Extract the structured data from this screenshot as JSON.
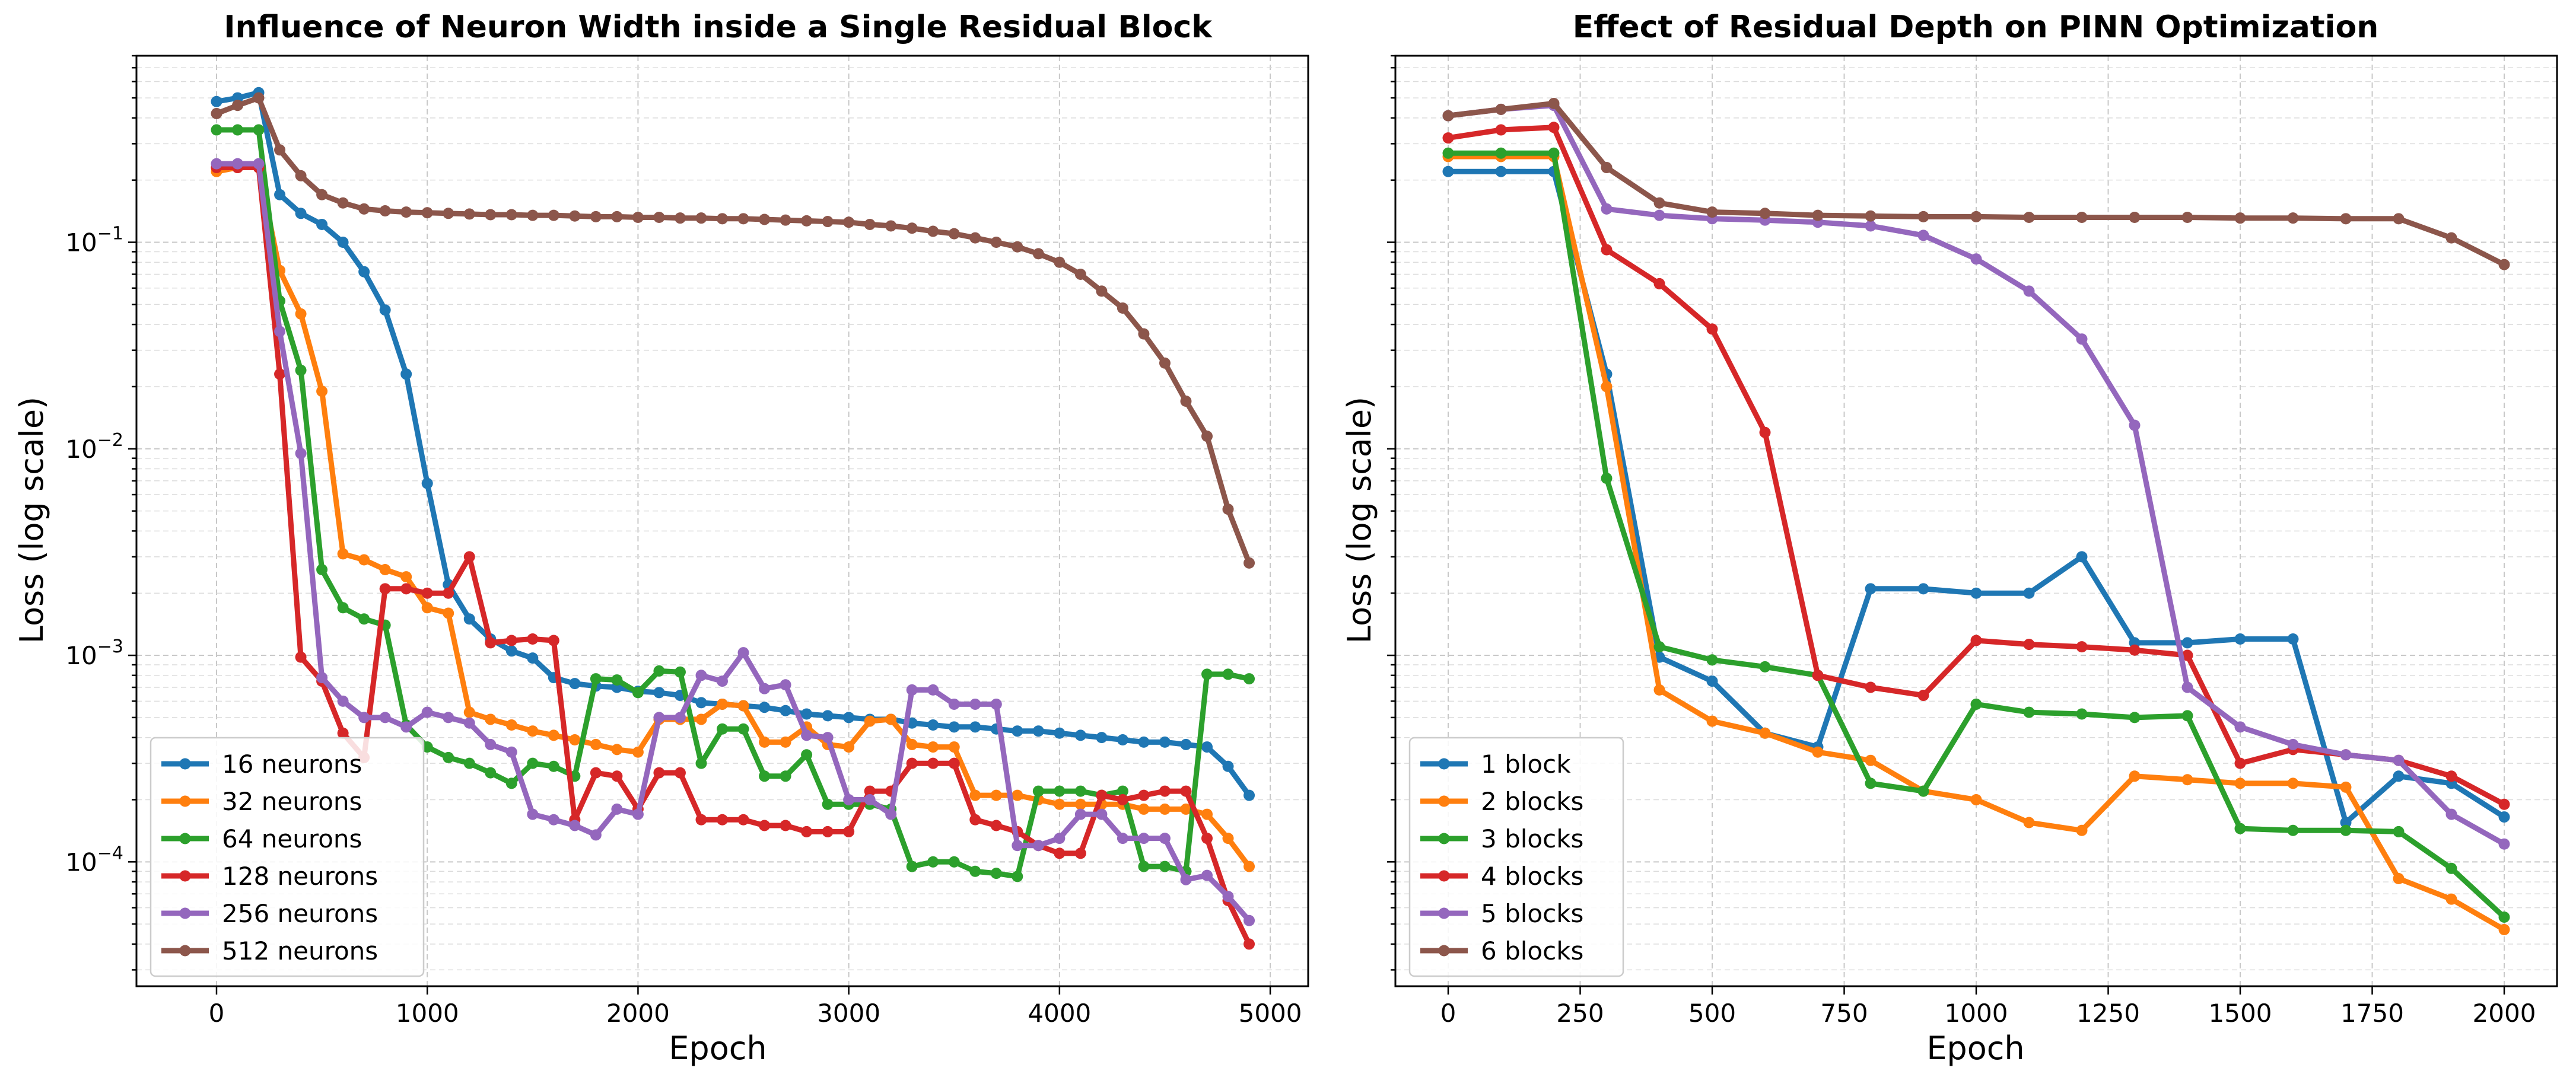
{
  "chart_data": [
    {
      "type": "line",
      "title": "Influence of Neuron Width inside a Single Residual Block",
      "xlabel": "Epoch",
      "ylabel": "Loss (log scale)",
      "yscale": "log",
      "xlim": [
        -380,
        5180
      ],
      "ylim": [
        2.5e-05,
        0.8
      ],
      "xticks": [
        0,
        1000,
        2000,
        3000,
        4000,
        5000
      ],
      "xtick_labels": [
        "0",
        "1000",
        "2000",
        "3000",
        "4000",
        "5000"
      ],
      "yticks": [
        0.0001,
        0.001,
        0.01,
        0.1
      ],
      "ytick_labels": [
        "10",
        "10",
        "10",
        "10"
      ],
      "ytick_exponents": [
        "−4",
        "−3",
        "−2",
        "−1"
      ],
      "grid": true,
      "legend_position": "lower-left",
      "x": [
        0,
        100,
        200,
        300,
        400,
        500,
        600,
        700,
        800,
        900,
        1000,
        1100,
        1200,
        1300,
        1400,
        1500,
        1600,
        1700,
        1800,
        1900,
        2000,
        2100,
        2200,
        2300,
        2400,
        2500,
        2600,
        2700,
        2800,
        2900,
        3000,
        3100,
        3200,
        3300,
        3400,
        3500,
        3600,
        3700,
        3800,
        3900,
        4000,
        4100,
        4200,
        4300,
        4400,
        4500,
        4600,
        4700,
        4800,
        4900
      ],
      "series": [
        {
          "name": "16 neurons",
          "color": "#1f77b4",
          "values": [
            0.48,
            0.5,
            0.53,
            0.17,
            0.138,
            0.122,
            0.1,
            0.072,
            0.047,
            0.023,
            0.0068,
            0.0022,
            0.0015,
            0.0012,
            0.00105,
            0.00097,
            0.00078,
            0.00073,
            0.00071,
            0.0007,
            0.00067,
            0.00066,
            0.00064,
            0.00059,
            0.00058,
            0.00057,
            0.00056,
            0.00054,
            0.00052,
            0.00051,
            0.0005,
            0.00049,
            0.00049,
            0.00047,
            0.00046,
            0.00045,
            0.00045,
            0.00044,
            0.00043,
            0.00043,
            0.00042,
            0.00041,
            0.0004,
            0.00039,
            0.00038,
            0.00038,
            0.00037,
            0.00036,
            0.00029,
            0.00021
          ]
        },
        {
          "name": "32 neurons",
          "color": "#ff7f0e",
          "values": [
            0.22,
            0.23,
            0.23,
            0.073,
            0.045,
            0.019,
            0.0031,
            0.0029,
            0.0026,
            0.0024,
            0.0017,
            0.0016,
            0.00053,
            0.00049,
            0.00046,
            0.00043,
            0.00041,
            0.00039,
            0.00037,
            0.00035,
            0.00034,
            0.00049,
            0.00049,
            0.00049,
            0.00058,
            0.00057,
            0.00038,
            0.00038,
            0.00045,
            0.00037,
            0.00036,
            0.00048,
            0.00049,
            0.00037,
            0.00036,
            0.00036,
            0.00021,
            0.00021,
            0.00021,
            0.0002,
            0.00019,
            0.00019,
            0.00019,
            0.00019,
            0.00018,
            0.00018,
            0.00018,
            0.00017,
            0.00013,
            9.5e-05
          ]
        },
        {
          "name": "64 neurons",
          "color": "#2ca02c",
          "values": [
            0.35,
            0.35,
            0.35,
            0.052,
            0.024,
            0.0026,
            0.0017,
            0.0015,
            0.0014,
            0.00046,
            0.00036,
            0.00032,
            0.0003,
            0.00027,
            0.00024,
            0.0003,
            0.00029,
            0.00026,
            0.00077,
            0.00076,
            0.00066,
            0.00084,
            0.00083,
            0.0003,
            0.00044,
            0.00044,
            0.00026,
            0.00026,
            0.00033,
            0.00019,
            0.00019,
            0.00019,
            0.00018,
            9.5e-05,
            0.0001,
            0.0001,
            9e-05,
            8.8e-05,
            8.5e-05,
            0.00022,
            0.00022,
            0.00022,
            0.00021,
            0.00022,
            9.5e-05,
            9.5e-05,
            9e-05,
            0.00081,
            0.00081,
            0.00077
          ]
        },
        {
          "name": "128 neurons",
          "color": "#d62728",
          "values": [
            0.23,
            0.23,
            0.23,
            0.023,
            0.00098,
            0.00075,
            0.00042,
            0.00032,
            0.0021,
            0.0021,
            0.002,
            0.002,
            0.003,
            0.00115,
            0.00118,
            0.0012,
            0.00118,
            0.00016,
            0.00027,
            0.00026,
            0.00018,
            0.00027,
            0.00027,
            0.00016,
            0.00016,
            0.00016,
            0.00015,
            0.00015,
            0.00014,
            0.00014,
            0.00014,
            0.00022,
            0.00022,
            0.0003,
            0.0003,
            0.0003,
            0.00016,
            0.00015,
            0.00014,
            0.00012,
            0.00011,
            0.00011,
            0.00021,
            0.0002,
            0.00021,
            0.00022,
            0.00022,
            0.00013,
            6.5e-05,
            4e-05
          ]
        },
        {
          "name": "256 neurons",
          "color": "#9467bd",
          "values": [
            0.24,
            0.24,
            0.24,
            0.037,
            0.0095,
            0.00078,
            0.0006,
            0.0005,
            0.0005,
            0.00045,
            0.00053,
            0.0005,
            0.00047,
            0.00037,
            0.00034,
            0.00017,
            0.00016,
            0.00015,
            0.000135,
            0.00018,
            0.00017,
            0.0005,
            0.0005,
            0.0008,
            0.00075,
            0.00103,
            0.00069,
            0.00072,
            0.00041,
            0.0004,
            0.0002,
            0.0002,
            0.00017,
            0.00068,
            0.00068,
            0.00058,
            0.00058,
            0.00058,
            0.00012,
            0.00012,
            0.00013,
            0.00017,
            0.00017,
            0.00013,
            0.00013,
            0.00013,
            8.2e-05,
            8.6e-05,
            6.8e-05,
            5.2e-05
          ]
        },
        {
          "name": "512 neurons",
          "color": "#8c564b",
          "values": [
            0.42,
            0.46,
            0.5,
            0.28,
            0.21,
            0.17,
            0.155,
            0.145,
            0.142,
            0.14,
            0.139,
            0.138,
            0.137,
            0.136,
            0.136,
            0.135,
            0.135,
            0.134,
            0.133,
            0.133,
            0.132,
            0.132,
            0.131,
            0.131,
            0.13,
            0.13,
            0.129,
            0.128,
            0.127,
            0.126,
            0.125,
            0.122,
            0.12,
            0.117,
            0.113,
            0.11,
            0.105,
            0.1,
            0.095,
            0.088,
            0.08,
            0.07,
            0.058,
            0.048,
            0.036,
            0.026,
            0.017,
            0.0115,
            0.0051,
            0.0028
          ]
        }
      ]
    },
    {
      "type": "line",
      "title": "Effect of Residual Depth on PINN Optimization",
      "xlabel": "Epoch",
      "ylabel": "Loss (log scale)",
      "yscale": "log",
      "xlim": [
        -100,
        2100
      ],
      "ylim": [
        2.5e-05,
        0.8
      ],
      "xticks": [
        0,
        250,
        500,
        750,
        1000,
        1250,
        1500,
        1750,
        2000
      ],
      "xtick_labels": [
        "0",
        "250",
        "500",
        "750",
        "1000",
        "1250",
        "1500",
        "1750",
        "2000"
      ],
      "yticks": [
        0.0001,
        0.001,
        0.01,
        0.1
      ],
      "grid": true,
      "legend_position": "lower-left",
      "x": [
        0,
        100,
        200,
        300,
        400,
        500,
        600,
        700,
        800,
        900,
        1000,
        1100,
        1200,
        1300,
        1400,
        1500,
        1600,
        1700,
        1800,
        1900,
        2000
      ],
      "series": [
        {
          "name": "1 block",
          "color": "#1f77b4",
          "values": [
            0.22,
            0.22,
            0.22,
            0.023,
            0.00098,
            0.00075,
            0.00042,
            0.00036,
            0.0021,
            0.0021,
            0.002,
            0.002,
            0.003,
            0.00115,
            0.00115,
            0.0012,
            0.0012,
            0.000155,
            0.00026,
            0.00024,
            0.000165
          ]
        },
        {
          "name": "2 blocks",
          "color": "#ff7f0e",
          "values": [
            0.26,
            0.26,
            0.26,
            0.02,
            0.00068,
            0.00048,
            0.00042,
            0.00034,
            0.00031,
            0.00022,
            0.0002,
            0.000155,
            0.000142,
            0.00026,
            0.00025,
            0.00024,
            0.00024,
            0.00023,
            8.3e-05,
            6.6e-05,
            4.7e-05
          ]
        },
        {
          "name": "3 blocks",
          "color": "#2ca02c",
          "values": [
            0.27,
            0.27,
            0.27,
            0.0072,
            0.0011,
            0.00095,
            0.00088,
            0.0008,
            0.00024,
            0.00022,
            0.00058,
            0.00053,
            0.00052,
            0.0005,
            0.00051,
            0.000145,
            0.000142,
            0.000142,
            0.00014,
            9.3e-05,
            5.4e-05
          ]
        },
        {
          "name": "4 blocks",
          "color": "#d62728",
          "values": [
            0.32,
            0.35,
            0.36,
            0.092,
            0.063,
            0.038,
            0.012,
            0.0008,
            0.0007,
            0.00064,
            0.00118,
            0.00113,
            0.0011,
            0.00106,
            0.001,
            0.0003,
            0.00035,
            0.00033,
            0.00031,
            0.00026,
            0.00019
          ]
        },
        {
          "name": "5 blocks",
          "color": "#9467bd",
          "values": [
            0.41,
            0.44,
            0.46,
            0.145,
            0.135,
            0.13,
            0.128,
            0.125,
            0.12,
            0.108,
            0.083,
            0.058,
            0.034,
            0.013,
            0.0007,
            0.00045,
            0.00037,
            0.00033,
            0.00031,
            0.00017,
            0.000122
          ]
        },
        {
          "name": "6 blocks",
          "color": "#8c564b",
          "values": [
            0.41,
            0.44,
            0.47,
            0.23,
            0.155,
            0.14,
            0.138,
            0.135,
            0.134,
            0.133,
            0.133,
            0.132,
            0.132,
            0.132,
            0.132,
            0.131,
            0.131,
            0.13,
            0.13,
            0.105,
            0.078
          ]
        }
      ]
    }
  ]
}
